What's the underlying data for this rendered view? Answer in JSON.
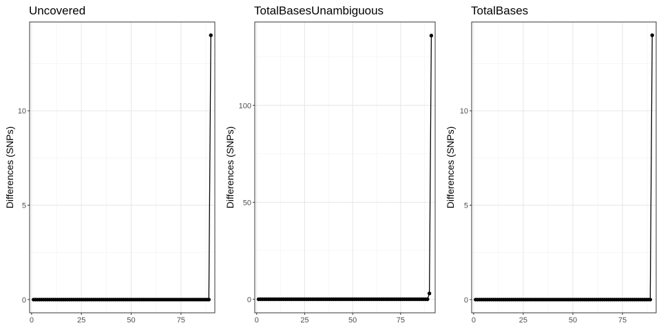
{
  "chart_data": [
    {
      "type": "line",
      "title": "Uncovered",
      "ylabel": "Differences (SNPs)",
      "xlabel": "",
      "xlim": [
        -1,
        92
      ],
      "ylim": [
        -0.7,
        14.7
      ],
      "xticks": [
        0,
        25,
        50,
        75
      ],
      "yticks": [
        0,
        5,
        10
      ],
      "grid": true,
      "series": [
        {
          "x_start": 1,
          "x_end": 89,
          "y_constant": 0,
          "points": [
            [
              90,
              14
            ]
          ]
        }
      ]
    },
    {
      "type": "line",
      "title": "TotalBasesUnambiguous",
      "ylabel": "Differences (SNPs)",
      "xlabel": "",
      "xlim": [
        -1,
        93
      ],
      "ylim": [
        -7,
        143
      ],
      "xticks": [
        0,
        25,
        50,
        75
      ],
      "yticks": [
        0,
        50,
        100
      ],
      "grid": true,
      "series": [
        {
          "x_start": 1,
          "x_end": 89,
          "y_constant": 0,
          "points": [
            [
              90,
              3
            ],
            [
              91,
              136
            ]
          ]
        }
      ]
    },
    {
      "type": "line",
      "title": "TotalBases",
      "ylabel": "Differences (SNPs)",
      "xlabel": "",
      "xlim": [
        -1,
        92
      ],
      "ylim": [
        -0.7,
        14.7
      ],
      "xticks": [
        0,
        25,
        50,
        75
      ],
      "yticks": [
        0,
        5,
        10
      ],
      "grid": true,
      "series": [
        {
          "x_start": 1,
          "x_end": 89,
          "y_constant": 0,
          "points": [
            [
              90,
              14
            ]
          ]
        }
      ]
    }
  ]
}
